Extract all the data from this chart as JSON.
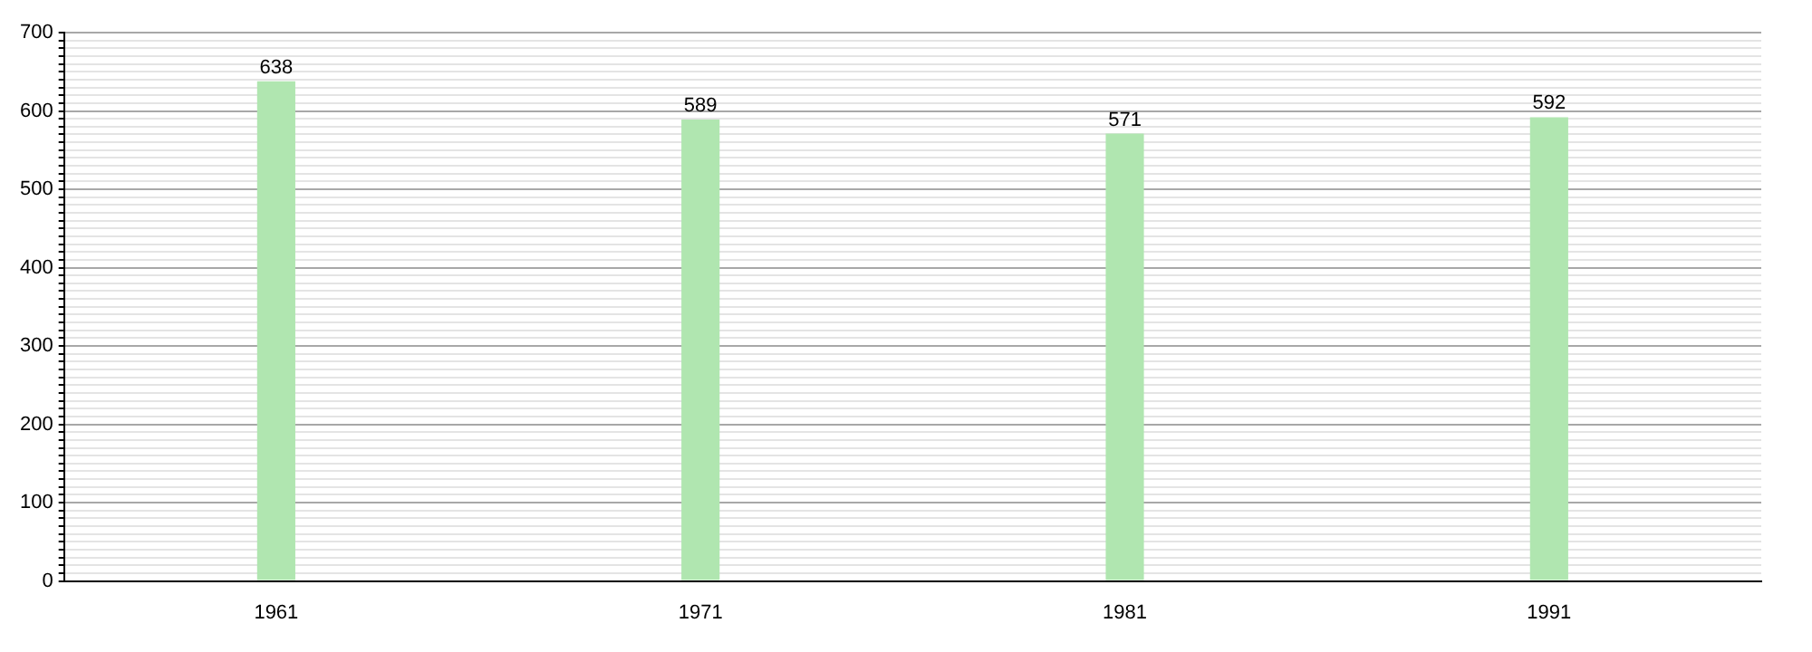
{
  "chart_data": {
    "type": "bar",
    "categories": [
      "1961",
      "1971",
      "1981",
      "1991"
    ],
    "values": [
      638,
      589,
      571,
      592
    ],
    "color": "#b0e6b0",
    "data_labels": true,
    "grid": "y",
    "legend": false,
    "ylim": [
      0,
      700
    ],
    "yticks": [
      0,
      {
        "value": 10,
        "label": null
      },
      {
        "value": 20,
        "label": null
      },
      {
        "value": 30,
        "label": null
      },
      {
        "value": 40,
        "label": null
      },
      {
        "value": 50,
        "label": null
      },
      {
        "value": 60,
        "label": null
      },
      {
        "value": 70,
        "label": null
      },
      {
        "value": 80,
        "label": null
      },
      {
        "value": 90,
        "label": null
      },
      100,
      {
        "value": 110,
        "label": null
      },
      {
        "value": 120,
        "label": null
      },
      {
        "value": 130,
        "label": null
      },
      {
        "value": 140,
        "label": null
      },
      {
        "value": 150,
        "label": null
      },
      {
        "value": 160,
        "label": null
      },
      {
        "value": 170,
        "label": null
      },
      {
        "value": 180,
        "label": null
      },
      {
        "value": 190,
        "label": null
      },
      200,
      {
        "value": 210,
        "label": null
      },
      {
        "value": 220,
        "label": null
      },
      {
        "value": 230,
        "label": null
      },
      {
        "value": 240,
        "label": null
      },
      {
        "value": 250,
        "label": null
      },
      {
        "value": 260,
        "label": null
      },
      {
        "value": 270,
        "label": null
      },
      {
        "value": 280,
        "label": null
      },
      {
        "value": 290,
        "label": null
      },
      300,
      {
        "value": 310,
        "label": null
      },
      {
        "value": 320,
        "label": null
      },
      {
        "value": 330,
        "label": null
      },
      {
        "value": 340,
        "label": null
      },
      {
        "value": 350,
        "label": null
      },
      {
        "value": 360,
        "label": null
      },
      {
        "value": 370,
        "label": null
      },
      {
        "value": 380,
        "label": null
      },
      {
        "value": 390,
        "label": null
      },
      400,
      {
        "value": 410,
        "label": null
      },
      {
        "value": 420,
        "label": null
      },
      {
        "value": 430,
        "label": null
      },
      {
        "value": 440,
        "label": null
      },
      {
        "value": 450,
        "label": null
      },
      {
        "value": 460,
        "label": null
      },
      {
        "value": 470,
        "label": null
      },
      {
        "value": 480,
        "label": null
      },
      {
        "value": 490,
        "label": null
      },
      500,
      {
        "value": 510,
        "label": null
      },
      {
        "value": 520,
        "label": null
      },
      {
        "value": 530,
        "label": null
      },
      {
        "value": 540,
        "label": null
      },
      {
        "value": 550,
        "label": null
      },
      {
        "value": 560,
        "label": null
      },
      {
        "value": 570,
        "label": null
      },
      {
        "value": 580,
        "label": null
      },
      {
        "value": 590,
        "label": null
      },
      600,
      {
        "value": 610,
        "label": null
      },
      {
        "value": 620,
        "label": null
      },
      {
        "value": 630,
        "label": null
      },
      {
        "value": 640,
        "label": null
      },
      {
        "value": 650,
        "label": null
      },
      {
        "value": 660,
        "label": null
      },
      {
        "value": 670,
        "label": null
      },
      {
        "value": 680,
        "label": null
      },
      {
        "value": 690,
        "label": null
      },
      700
    ]
  }
}
